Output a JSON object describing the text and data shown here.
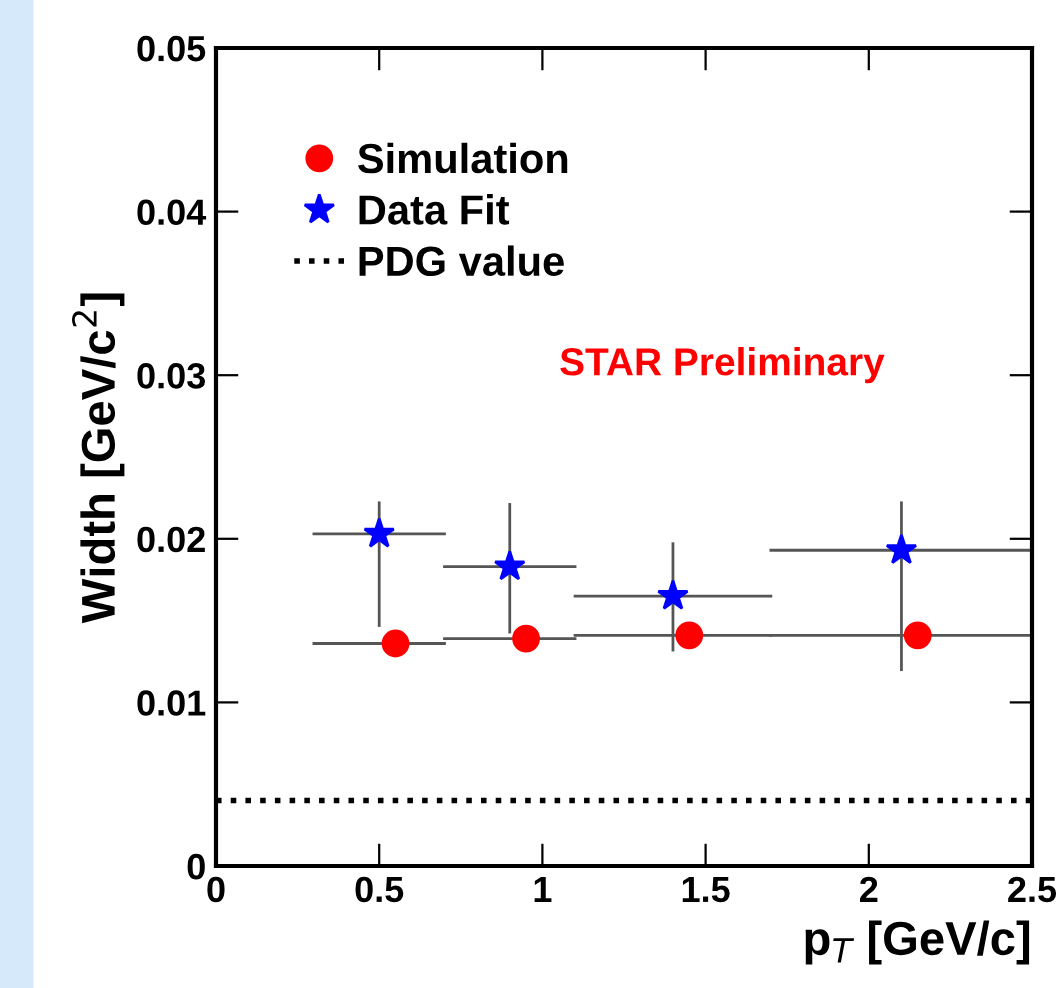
{
  "chart_data": {
    "type": "scatter",
    "xlabel": "p$_{T}$ [GeV/c]",
    "ylabel": "Width [GeV/c$^{2}$]",
    "xlim": [
      0,
      2.5
    ],
    "xticks": [
      0,
      0.5,
      1,
      1.5,
      2,
      2.5
    ],
    "ylim": [
      0,
      0.05
    ],
    "yticks": [
      0,
      0.01,
      0.02,
      0.03,
      0.04,
      0.05
    ],
    "grid": false,
    "legend": "top left",
    "series": [
      {
        "name": "Simulation",
        "color": "#ff0000",
        "marker": "circle",
        "x": [
          0.55,
          0.95,
          1.45,
          2.15
        ],
        "values": [
          0.0136,
          0.0139,
          0.0141,
          0.0141
        ],
        "xerrors": [
          [
            0.3,
            0.7
          ],
          [
            0.7,
            1.1
          ],
          [
            1.1,
            1.7
          ],
          [
            1.7,
            2.5
          ]
        ]
      },
      {
        "name": "Data Fit",
        "color": "#0000ff",
        "marker": "star",
        "x": [
          0.5,
          0.9,
          1.4,
          2.1
        ],
        "values": [
          0.0203,
          0.0183,
          0.0165,
          0.0193
        ],
        "xerrors": [
          [
            0.3,
            0.7
          ],
          [
            0.7,
            1.1
          ],
          [
            1.1,
            1.7
          ],
          [
            1.7,
            2.5
          ]
        ],
        "errors": [
          [
            0.0147,
            0.0222
          ],
          [
            0.0143,
            0.0221
          ],
          [
            0.0132,
            0.0197
          ],
          [
            0.012,
            0.0222
          ]
        ]
      }
    ],
    "ref_lines": [
      {
        "axis": "y",
        "value": 0.004,
        "label": "PDG value",
        "color": "#000000",
        "line_style": "dotted"
      }
    ],
    "annotations": [
      "STAR Preliminary"
    ]
  }
}
